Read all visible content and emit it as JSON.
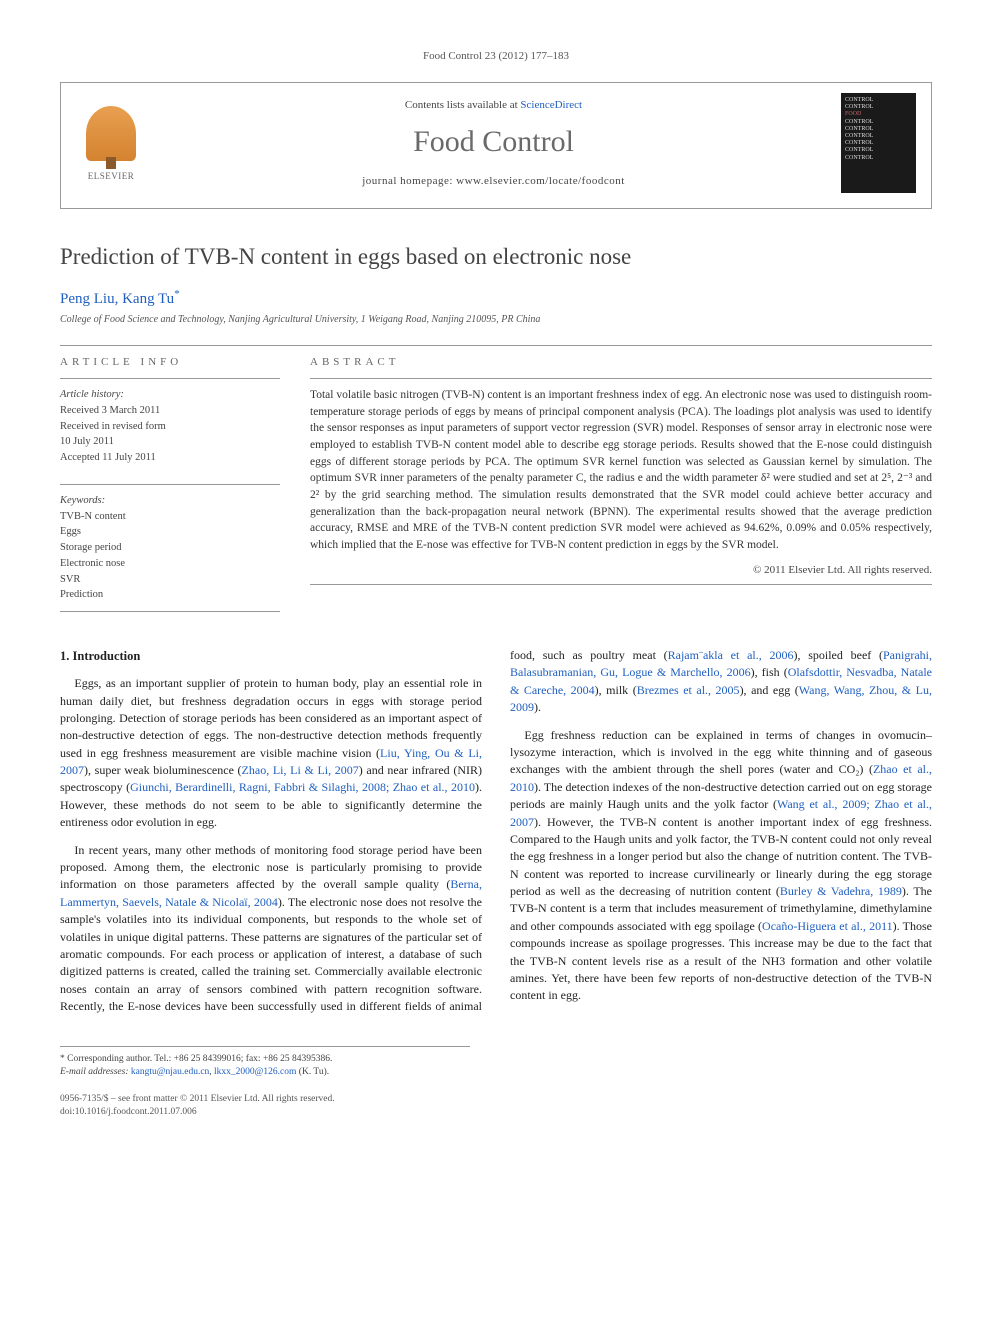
{
  "running_head": "Food Control 23 (2012) 177–183",
  "header": {
    "contents_prefix": "Contents lists available at ",
    "contents_link": "ScienceDirect",
    "journal": "Food Control",
    "homepage_label": "journal homepage: ",
    "homepage_url": "www.elsevier.com/locate/foodcont",
    "publisher_logo_text": "ELSEVIER",
    "cover_lines": [
      "CONTROL",
      "CONTROL",
      "FOOD",
      "CONTROL",
      "CONTROL",
      "CONTROL",
      "CONTROL",
      "CONTROL",
      "CONTROL"
    ]
  },
  "article": {
    "title": "Prediction of TVB-N content in eggs based on electronic nose",
    "authors": "Peng Liu, Kang Tu",
    "corresponding_mark": "*",
    "affiliation": "College of Food Science and Technology, Nanjing Agricultural University, 1 Weigang Road, Nanjing 210095, PR China"
  },
  "info": {
    "heading": "ARTICLE INFO",
    "history_label": "Article history:",
    "history": [
      "Received 3 March 2011",
      "Received in revised form",
      "10 July 2011",
      "Accepted 11 July 2011"
    ],
    "keywords_label": "Keywords:",
    "keywords": [
      "TVB-N content",
      "Eggs",
      "Storage period",
      "Electronic nose",
      "SVR",
      "Prediction"
    ]
  },
  "abstract": {
    "heading": "ABSTRACT",
    "text": "Total volatile basic nitrogen (TVB-N) content is an important freshness index of egg. An electronic nose was used to distinguish room-temperature storage periods of eggs by means of principal component analysis (PCA). The loadings plot analysis was used to identify the sensor responses as input parameters of support vector regression (SVR) model. Responses of sensor array in electronic nose were employed to establish TVB-N content model able to describe egg storage periods. Results showed that the E-nose could distinguish eggs of different storage periods by PCA. The optimum SVR kernel function was selected as Gaussian kernel by simulation. The optimum SVR inner parameters of the penalty parameter C, the radius e and the width parameter δ² were studied and set at 2⁵, 2⁻³ and 2² by the grid searching method. The simulation results demonstrated that the SVR model could achieve better accuracy and generalization than the back-propagation neural network (BPNN). The experimental results showed that the average prediction accuracy, RMSE and MRE of the TVB-N content prediction SVR model were achieved as 94.62%, 0.09% and 0.05% respectively, which implied that the E-nose was effective for TVB-N content prediction in eggs by the SVR model.",
    "copyright": "© 2011 Elsevier Ltd. All rights reserved."
  },
  "body": {
    "section_heading": "1. Introduction",
    "p1_a": "Eggs, as an important supplier of protein to human body, play an essential role in human daily diet, but freshness degradation occurs in eggs with storage period prolonging. Detection of storage periods has been considered as an important aspect of non-destructive detection of eggs. The non-destructive detection methods frequently used in egg freshness measurement are visible machine vision (",
    "c1": "Liu, Ying, Ou & Li, 2007",
    "p1_b": "), super weak bioluminescence (",
    "c2": "Zhao, Li, Li & Li, 2007",
    "p1_c": ") and near infrared (NIR) spectroscopy (",
    "c3": "Giunchi, Berardinelli, Ragni, Fabbri & Silaghi, 2008; Zhao et al., 2010",
    "p1_d": "). However, these methods do not seem to be able to significantly determine the entireness odor evolution in egg.",
    "p2_a": "In recent years, many other methods of monitoring food storage period have been proposed. Among them, the electronic nose is particularly promising to provide information on those parameters affected by the overall sample quality (",
    "c4": "Berna, Lammertyn, Saevels, Natale & Nicolaï, 2004",
    "p2_b": "). The electronic nose does not resolve the sample's volatiles into its individual components, but responds to the whole set of volatiles in unique digital patterns. These patterns are signatures of the particular set of aromatic compounds. For each process or application of interest, a database of such digitized patterns is created, called the training set. Commercially available electronic noses contain an array of sensors combined with pattern recognition software. Recently, the E-nose devices have been successfully used in different fields of animal food, such as poultry meat (",
    "c5": "Rajam¨akla et al., 2006",
    "p2_c": "), spoiled beef (",
    "c6": "Panigrahi, Balasubramanian, Gu, Logue & Marchello, 2006",
    "p2_d": "), fish (",
    "c7": "Olafsdottir, Nesvadba, Natale & Careche, 2004",
    "p2_e": "), milk (",
    "c8": "Brezmes et al., 2005",
    "p2_f": "), and egg (",
    "c9": "Wang, Wang, Zhou, & Lu, 2009",
    "p2_g": ").",
    "p3_a": "Egg freshness reduction can be explained in terms of changes in ovomucin–lysozyme interaction, which is involved in the egg white thinning and of gaseous exchanges with the ambient through the shell pores (water and CO₂) (",
    "c10": "Zhao et al., 2010",
    "p3_b": "). The detection indexes of the non-destructive detection carried out on egg storage periods are mainly Haugh units and the yolk factor (",
    "c11": "Wang et al., 2009; Zhao et al., 2007",
    "p3_c": "). However, the TVB-N content is another important index of egg freshness. Compared to the Haugh units and yolk factor, the TVB-N content could not only reveal the egg freshness in a longer period but also the change of nutrition content. The TVB-N content was reported to increase curvilinearly or linearly during the egg storage period as well as the decreasing of nutrition content (",
    "c12": "Burley & Vadehra, 1989",
    "p3_d": "). The TVB-N content is a term that includes measurement of trimethylamine, dimethylamine and other compounds associated with egg spoilage (",
    "c13": "Ocaño-Higuera et al., 2011",
    "p3_e": "). Those compounds increase as spoilage progresses. This increase may be due to the fact that the TVB-N content levels rise as a result of the NH3 formation and other volatile amines. Yet, there have been few reports of non-destructive detection of the TVB-N content in egg."
  },
  "footnotes": {
    "corr": "* Corresponding author. Tel.: +86 25 84399016; fax: +86 25 84395386.",
    "email_label": "E-mail addresses: ",
    "email1": "kangtu@njau.edu.cn",
    "email_sep": ", ",
    "email2": "lkxx_2000@126.com",
    "email_tail": " (K. Tu).",
    "issn": "0956-7135/$ – see front matter © 2011 Elsevier Ltd. All rights reserved.",
    "doi": "doi:10.1016/j.foodcont.2011.07.006"
  }
}
